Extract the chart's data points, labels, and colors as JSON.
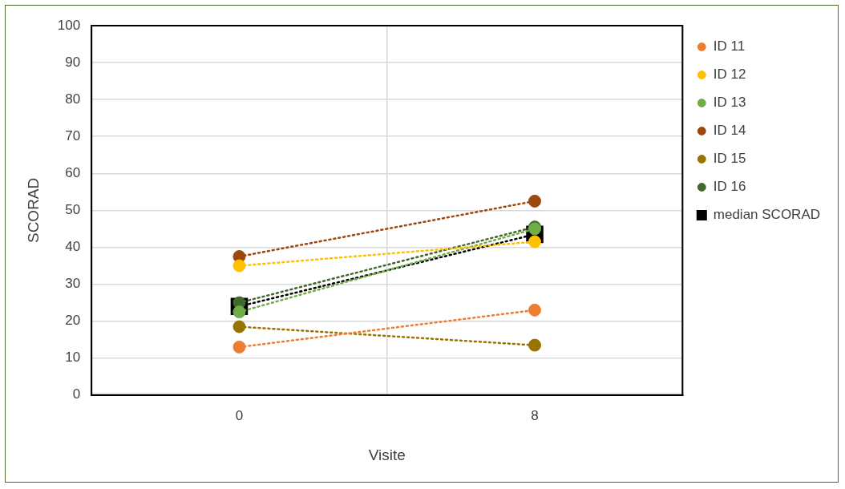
{
  "chart_data": {
    "type": "line",
    "xlabel": "Visite",
    "ylabel": "SCORAD",
    "categories": [
      "0",
      "8"
    ],
    "series": [
      {
        "name": "ID 11",
        "color": "#ed7d31",
        "values": [
          13,
          23
        ]
      },
      {
        "name": "ID 12",
        "color": "#ffc000",
        "values": [
          35,
          41.5
        ]
      },
      {
        "name": "ID 13",
        "color": "#70ad47",
        "values": [
          22.5,
          45
        ]
      },
      {
        "name": "ID 14",
        "color": "#9e480e",
        "values": [
          37.5,
          52.5
        ]
      },
      {
        "name": "ID 15",
        "color": "#997300",
        "values": [
          18.5,
          13.5
        ]
      },
      {
        "name": "ID 16",
        "color": "#43682b",
        "values": [
          25,
          45.5
        ]
      },
      {
        "name": "median SCORAD",
        "color": "#000000",
        "values": [
          24,
          43.5
        ],
        "marker": "square"
      }
    ],
    "ylim": [
      0,
      100
    ],
    "yticks": [
      0,
      10,
      20,
      30,
      40,
      50,
      60,
      70,
      80,
      90,
      100
    ],
    "grid": true,
    "legend": "right",
    "marker": "circle",
    "line_style": "dotted"
  }
}
